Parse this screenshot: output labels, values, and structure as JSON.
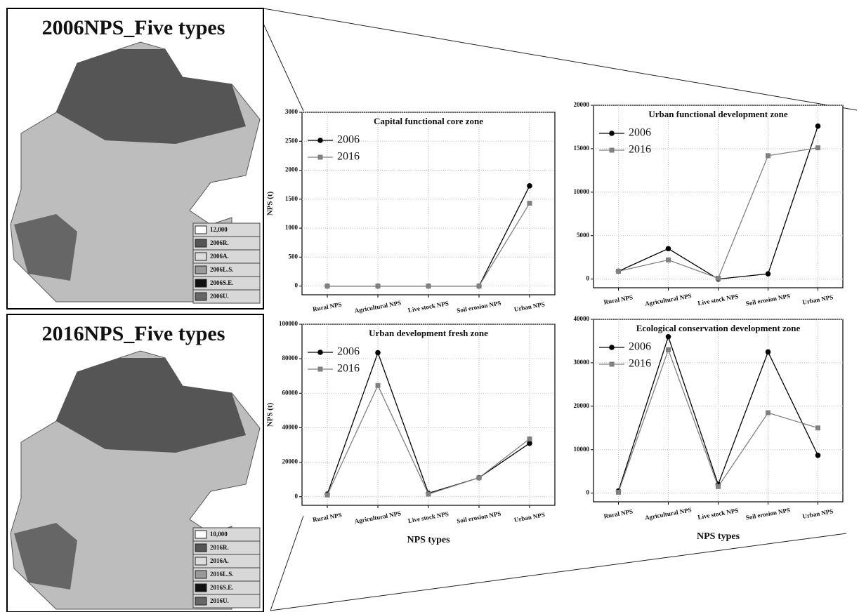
{
  "maps": [
    {
      "title": "2006NPS_Five types",
      "legend": [
        "12,000",
        "2006R.",
        "2006A.",
        "2006L.S.",
        "2006S.E.",
        "2006U."
      ]
    },
    {
      "title": "2016NPS_Five types",
      "legend": [
        "10,000",
        "2016R.",
        "2016A.",
        "2016L.S.",
        "2016S.E.",
        "2016U."
      ]
    }
  ],
  "chart_data": [
    {
      "type": "line",
      "title": "Capital functional core zone",
      "y_label": "NPS (t)",
      "categories": [
        "Rural NPS",
        "Agricultural NPS",
        "Live stock NPS",
        "Soil erosion NPS",
        "Urban NPS"
      ],
      "series": [
        {
          "name": "2006",
          "color": "#000000",
          "marker": "circle",
          "values": [
            0,
            0,
            0,
            0,
            1730
          ]
        },
        {
          "name": "2016",
          "color": "#808080",
          "marker": "square",
          "values": [
            0,
            0,
            0,
            0,
            1430
          ]
        }
      ],
      "ylim": [
        -150,
        3000
      ],
      "yticks": [
        0,
        500,
        1000,
        1500,
        2000,
        2500,
        3000
      ],
      "grid": true,
      "legend": "upper left"
    },
    {
      "type": "line",
      "title": "Urban functional development zone",
      "categories": [
        "Rural NPS",
        "Agricultural NPS",
        "Live stock NPS",
        "Soil erosion NPS",
        "Urban NPS"
      ],
      "series": [
        {
          "name": "2006",
          "color": "#000000",
          "marker": "circle",
          "values": [
            900,
            3500,
            0,
            600,
            17600
          ]
        },
        {
          "name": "2016",
          "color": "#808080",
          "marker": "square",
          "values": [
            900,
            2200,
            100,
            14200,
            15100
          ]
        }
      ],
      "ylim": [
        -1000,
        20000
      ],
      "yticks": [
        0,
        5000,
        10000,
        15000,
        20000
      ],
      "grid": true,
      "legend": "upper left"
    },
    {
      "type": "line",
      "title": "Urban development fresh zone",
      "y_label": "NPS (t)",
      "x_label": "NPS types",
      "categories": [
        "Rural NPS",
        "Agricultural NPS",
        "Live stock NPS",
        "Soil erosion NPS",
        "Urban NPS"
      ],
      "series": [
        {
          "name": "2006",
          "color": "#000000",
          "marker": "circle",
          "values": [
            1500,
            83500,
            2000,
            11000,
            31000
          ]
        },
        {
          "name": "2016",
          "color": "#808080",
          "marker": "square",
          "values": [
            1000,
            64500,
            1500,
            11000,
            33500
          ]
        }
      ],
      "ylim": [
        -5000,
        100000
      ],
      "yticks": [
        0,
        20000,
        40000,
        60000,
        80000,
        100000
      ],
      "grid": true,
      "legend": "upper left"
    },
    {
      "type": "line",
      "title": "Ecological conservation development zone",
      "x_label": "NPS types",
      "categories": [
        "Rural NPS",
        "Agricultural NPS",
        "Live stock NPS",
        "Soil erosion NPS",
        "Urban NPS"
      ],
      "series": [
        {
          "name": "2006",
          "color": "#000000",
          "marker": "circle",
          "values": [
            500,
            36000,
            2000,
            32500,
            8700
          ]
        },
        {
          "name": "2016",
          "color": "#808080",
          "marker": "square",
          "values": [
            200,
            33000,
            1500,
            18500,
            15000
          ]
        }
      ],
      "ylim": [
        -2000,
        40000
      ],
      "yticks": [
        0,
        10000,
        20000,
        30000,
        40000
      ],
      "grid": true,
      "legend": "upper left"
    }
  ]
}
